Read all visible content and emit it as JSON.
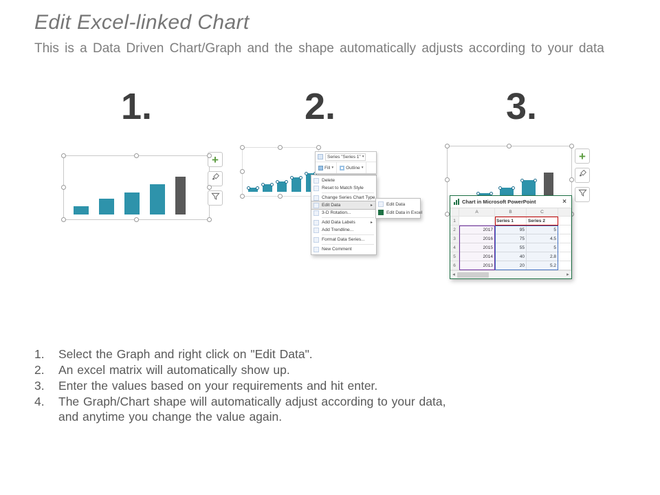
{
  "slide": {
    "title": "Edit Excel-linked Chart",
    "subtitle": "This is a Data Driven Chart/Graph and the shape automatically adjusts according to your data"
  },
  "steps": [
    "1.",
    "2.",
    "3."
  ],
  "glyphs": {
    "plus": "+",
    "dropdown": "▾",
    "submenu_arrow": "▸",
    "close": "×",
    "scroll_left": "◄",
    "scroll_right": "►"
  },
  "colors": {
    "bar_blue": "#2e93ab",
    "bar_gray": "#595959",
    "excel_green": "#1e7145",
    "title_gray": "#767676"
  },
  "chart_data": {
    "type": "bar",
    "categories": [
      "2013",
      "2014",
      "2015",
      "2016",
      "2017"
    ],
    "series": [
      {
        "name": "Series 1",
        "values": [
          20,
          40,
          55,
          75,
          95
        ]
      },
      {
        "name": "Series 2",
        "values": [
          5.2,
          2.8,
          5,
          4.5,
          5
        ]
      }
    ],
    "title": "",
    "xlabel": "",
    "ylabel": "",
    "legend": "none",
    "grid": false
  },
  "mini_toolbar": {
    "series_selector": "Series \"Series 1\"",
    "fill": "Fill",
    "outline": "Outline"
  },
  "context_menu": {
    "items": [
      "Delete",
      "Reset to Match Style",
      "Change Series Chart Type...",
      "Edit Data",
      "3-D Rotation...",
      "Add Data Labels",
      "Add Trendline...",
      "Format Data Series...",
      "New Comment"
    ],
    "submenu": [
      "Edit Data",
      "Edit Data in Excel"
    ]
  },
  "excel_window": {
    "title": "Chart in Microsoft PowerPoint",
    "columns": [
      "A",
      "B",
      "C"
    ],
    "rows": [
      {
        "n": "1",
        "a": "",
        "b": "Series 1",
        "c": "Series 2"
      },
      {
        "n": "2",
        "a": "2017",
        "b": "95",
        "c": "5"
      },
      {
        "n": "3",
        "a": "2016",
        "b": "75",
        "c": "4.5"
      },
      {
        "n": "4",
        "a": "2015",
        "b": "55",
        "c": "5"
      },
      {
        "n": "5",
        "a": "2014",
        "b": "40",
        "c": "2.8"
      },
      {
        "n": "6",
        "a": "2013",
        "b": "20",
        "c": "5.2"
      }
    ]
  },
  "instructions": [
    {
      "num": "1.",
      "text": "Select the Graph and right click on \"Edit Data\"."
    },
    {
      "num": "2.",
      "text": "An excel matrix will automatically show up."
    },
    {
      "num": "3.",
      "text": "Enter the values based on your requirements and hit enter."
    },
    {
      "num": "4.",
      "text": "The Graph/Chart shape will automatically adjust according to your data,\nand anytime you change the value again."
    }
  ]
}
